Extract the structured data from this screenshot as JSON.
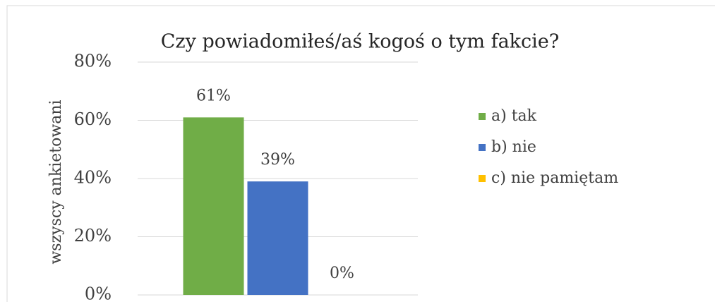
{
  "chart_data": {
    "type": "bar",
    "title": "Czy powiadomiłeś/aś kogoś o tym fakcie?",
    "y_label": "wszyscy ankietowani",
    "series": [
      {
        "name": "a) tak",
        "color": "#70ad47",
        "values": [
          61
        ],
        "value_labels": [
          "61%"
        ]
      },
      {
        "name": "b) nie",
        "color": "#4472c4",
        "values": [
          39
        ],
        "value_labels": [
          "39%"
        ]
      },
      {
        "name": "c) nie pamiętam",
        "color": "#ffc000",
        "values": [
          0
        ],
        "value_labels": [
          "0%"
        ]
      }
    ],
    "ylim": [
      0,
      80
    ],
    "yticks": [
      {
        "value": 0,
        "label": "0%"
      },
      {
        "value": 20,
        "label": "20%"
      },
      {
        "value": 40,
        "label": "40%"
      },
      {
        "value": 60,
        "label": "60%"
      },
      {
        "value": 80,
        "label": "80%"
      }
    ],
    "grid": true,
    "legend": "right"
  }
}
